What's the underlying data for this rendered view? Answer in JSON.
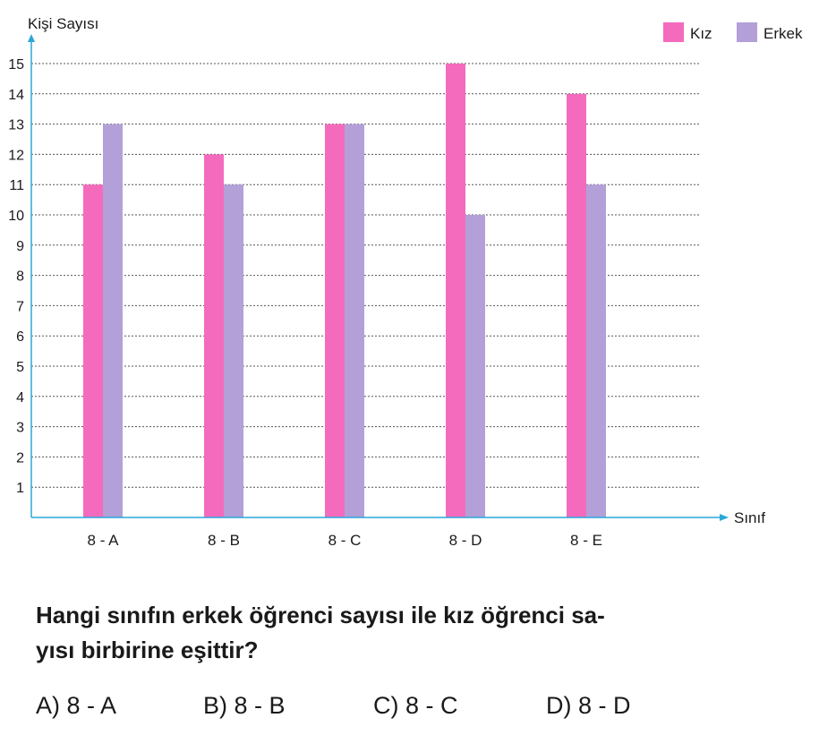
{
  "chart_data": {
    "type": "bar",
    "ylabel": "Kişi Sayısı",
    "xlabel": "Sınıf",
    "categories": [
      "8 - A",
      "8 - B",
      "8 - C",
      "8 - D",
      "8 - E"
    ],
    "series": [
      {
        "name": "Kız",
        "color": "#f46bbd",
        "values": [
          11,
          12,
          13,
          15,
          14
        ]
      },
      {
        "name": "Erkek",
        "color": "#b3a0d8",
        "values": [
          13,
          11,
          13,
          10,
          11
        ]
      }
    ],
    "ylim": [
      0,
      15
    ],
    "yticks": [
      1,
      2,
      3,
      4,
      5,
      6,
      7,
      8,
      9,
      10,
      11,
      12,
      13,
      14,
      15
    ],
    "grid": "dashed horizontal",
    "legend": "top-right",
    "axis_color": "#29a8d8"
  },
  "question": {
    "line1": "Hangi sınıfın erkek öğrenci sayısı ile kız öğrenci sa-",
    "line2": "yısı birbirine eşittir?"
  },
  "options": [
    {
      "label": "A) 8 - A"
    },
    {
      "label": "B) 8 - B"
    },
    {
      "label": "C) 8 - C"
    },
    {
      "label": "D) 8 - D"
    }
  ]
}
